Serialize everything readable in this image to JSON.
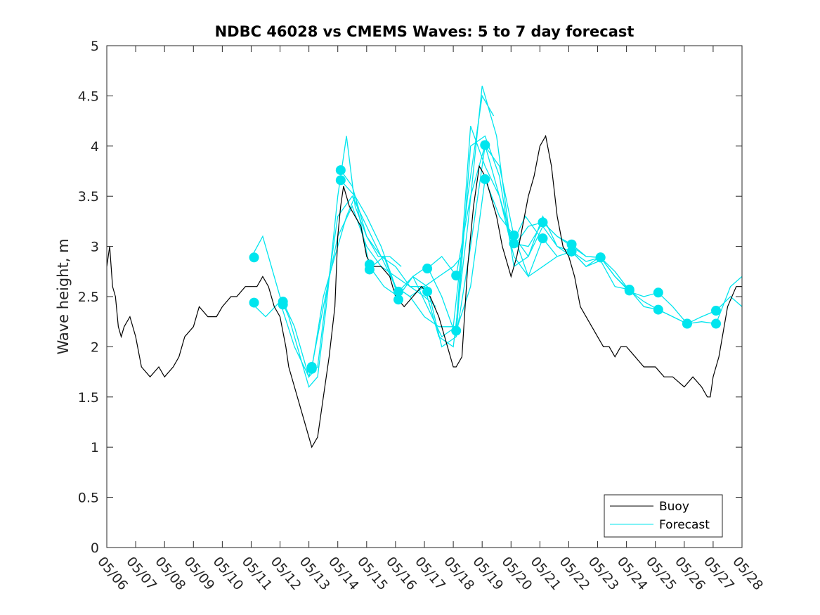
{
  "chart_data": {
    "type": "line",
    "title": "NDBC 46028 vs CMEMS Waves: 5 to 7 day forecast",
    "ylabel": "Wave height, m",
    "xlabel": "",
    "ylim": [
      0,
      5
    ],
    "yticks": [
      0,
      0.5,
      1,
      1.5,
      2,
      2.5,
      3,
      3.5,
      4,
      4.5,
      5
    ],
    "ytick_labels": [
      "0",
      "0.5",
      "1",
      "1.5",
      "2",
      "2.5",
      "3",
      "3.5",
      "4",
      "4.5",
      "5"
    ],
    "xlim": [
      0,
      22
    ],
    "xtick_labels": [
      "05/06",
      "05/07",
      "05/08",
      "05/09",
      "05/10",
      "05/11",
      "05/12",
      "05/13",
      "05/14",
      "05/15",
      "05/16",
      "05/17",
      "05/18",
      "05/19",
      "05/20",
      "05/21",
      "05/22",
      "05/23",
      "05/24",
      "05/25",
      "05/26",
      "05/27",
      "05/28"
    ],
    "grid": false,
    "legend": {
      "position": "bottom-right",
      "entries": [
        "Buoy",
        "Forecast"
      ]
    },
    "colors": {
      "buoy": "#000000",
      "forecast": "#00e5ee"
    },
    "series": [
      {
        "name": "Buoy",
        "color": "#000000",
        "x": [
          0,
          0.1,
          0.2,
          0.3,
          0.4,
          0.5,
          0.6,
          0.8,
          1.0,
          1.2,
          1.5,
          1.8,
          2.0,
          2.3,
          2.5,
          2.7,
          3.0,
          3.2,
          3.5,
          3.8,
          4.0,
          4.3,
          4.5,
          4.8,
          5.0,
          5.2,
          5.4,
          5.6,
          5.8,
          6.0,
          6.2,
          6.3,
          6.5,
          6.7,
          6.9,
          7.0,
          7.1,
          7.3,
          7.5,
          7.7,
          7.9,
          8.0,
          8.1,
          8.2,
          8.4,
          8.6,
          8.8,
          9.0,
          9.2,
          9.5,
          9.8,
          10.0,
          10.3,
          10.6,
          10.9,
          11.2,
          11.5,
          11.7,
          11.9,
          12.0,
          12.1,
          12.3,
          12.5,
          12.7,
          12.9,
          13.1,
          13.3,
          13.5,
          13.7,
          13.9,
          14.0,
          14.2,
          14.4,
          14.6,
          14.8,
          15.0,
          15.2,
          15.4,
          15.6,
          15.8,
          16.0,
          16.2,
          16.4,
          16.6,
          16.8,
          17.0,
          17.2,
          17.4,
          17.6,
          17.8,
          18.0,
          18.3,
          18.6,
          19.0,
          19.3,
          19.6,
          20.0,
          20.3,
          20.6,
          20.8,
          20.9,
          21.0,
          21.2,
          21.5,
          21.8,
          22.0
        ],
        "y": [
          2.8,
          3.0,
          2.6,
          2.5,
          2.2,
          2.1,
          2.2,
          2.3,
          2.1,
          1.8,
          1.7,
          1.8,
          1.7,
          1.8,
          1.9,
          2.1,
          2.2,
          2.4,
          2.3,
          2.3,
          2.4,
          2.5,
          2.5,
          2.6,
          2.6,
          2.6,
          2.7,
          2.6,
          2.4,
          2.3,
          2.0,
          1.8,
          1.6,
          1.4,
          1.2,
          1.1,
          1.0,
          1.1,
          1.5,
          1.9,
          2.4,
          3.1,
          3.4,
          3.6,
          3.4,
          3.3,
          3.2,
          2.9,
          2.8,
          2.8,
          2.7,
          2.5,
          2.4,
          2.5,
          2.6,
          2.5,
          2.3,
          2.1,
          1.9,
          1.8,
          1.8,
          1.9,
          2.8,
          3.4,
          3.8,
          3.7,
          3.5,
          3.3,
          3.0,
          2.8,
          2.7,
          2.9,
          3.2,
          3.5,
          3.7,
          4.0,
          4.1,
          3.8,
          3.3,
          3.0,
          2.9,
          2.7,
          2.4,
          2.3,
          2.2,
          2.1,
          2.0,
          2.0,
          1.9,
          2.0,
          2.0,
          1.9,
          1.8,
          1.8,
          1.7,
          1.7,
          1.6,
          1.7,
          1.6,
          1.5,
          1.5,
          1.7,
          1.9,
          2.4,
          2.6,
          2.6
        ]
      },
      {
        "name": "Forecast",
        "color": "#00e5ee",
        "runs": [
          {
            "x": [
              5.0,
              5.4,
              5.7,
              6.0,
              6.3,
              6.7,
              7.0,
              7.3,
              7.6,
              8.0,
              8.3,
              8.6,
              9.0,
              9.4,
              9.8,
              10.2
            ],
            "y": [
              2.89,
              3.1,
              2.8,
              2.5,
              2.3,
              1.9,
              1.6,
              1.7,
              2.4,
              3.5,
              4.1,
              3.4,
              3.1,
              2.9,
              2.9,
              2.8
            ]
          },
          {
            "x": [
              5.0,
              5.5,
              6.0,
              6.5,
              7.0,
              7.3,
              7.6,
              8.0,
              8.5,
              9.0,
              9.5,
              10.0,
              10.5,
              11.0,
              11.4
            ],
            "y": [
              2.44,
              2.3,
              2.45,
              2.0,
              1.7,
              1.8,
              2.5,
              3.3,
              3.5,
              3.2,
              2.9,
              2.8,
              2.6,
              2.5,
              2.4
            ]
          },
          {
            "x": [
              6.1,
              6.5,
              7.0,
              7.1,
              7.5,
              8.0,
              8.5,
              9.0,
              9.5,
              10.0,
              10.5,
              11.0,
              11.5,
              12.0,
              12.3
            ],
            "y": [
              2.45,
              2.2,
              1.7,
              1.8,
              2.4,
              3.1,
              3.4,
              3.0,
              2.8,
              2.7,
              2.6,
              2.6,
              2.7,
              2.8,
              2.9
            ]
          },
          {
            "x": [
              7.1,
              7.5,
              8.0,
              8.3,
              8.6,
              9.0,
              9.5,
              10.0,
              10.5,
              11.0,
              11.5,
              12.0,
              12.5,
              13.0,
              13.4
            ],
            "y": [
              1.78,
              2.5,
              3.0,
              3.3,
              3.5,
              3.3,
              3.0,
              2.6,
              2.5,
              2.3,
              2.2,
              2.2,
              3.5,
              4.5,
              4.3
            ]
          },
          {
            "x": [
              8.1,
              8.5,
              9.0,
              9.5,
              10.0,
              10.5,
              11.0,
              11.5,
              12.0,
              12.5,
              13.0,
              13.5,
              14.0,
              14.5,
              15.0
            ],
            "y": [
              3.76,
              3.6,
              3.1,
              2.9,
              2.6,
              2.5,
              2.6,
              2.1,
              2.0,
              3.2,
              4.6,
              4.1,
              3.0,
              3.3,
              3.1
            ]
          },
          {
            "x": [
              8.1,
              8.6,
              9.1,
              9.6,
              10.1,
              10.6,
              11.1,
              11.6,
              12.1,
              12.6,
              13.1,
              13.6,
              14.1,
              14.6,
              15.1,
              15.6
            ],
            "y": [
              3.66,
              3.5,
              2.8,
              2.6,
              2.5,
              2.7,
              2.4,
              2.1,
              2.2,
              4.2,
              3.8,
              3.5,
              2.9,
              2.7,
              2.8,
              2.9
            ]
          },
          {
            "x": [
              9.1,
              9.6,
              10.1,
              10.6,
              11.1,
              11.6,
              12.1,
              12.6,
              13.1,
              13.6,
              14.1,
              14.6,
              15.1,
              15.6,
              16.1
            ],
            "y": [
              2.78,
              2.9,
              2.5,
              2.7,
              2.6,
              2.0,
              2.1,
              4.0,
              4.1,
              3.7,
              2.8,
              2.9,
              3.3,
              3.0,
              2.9
            ]
          },
          {
            "x": [
              10.1,
              10.6,
              11.1,
              11.6,
              12.1,
              12.6,
              13.1,
              13.6,
              14.1,
              14.6,
              15.1,
              15.6,
              16.1,
              16.6,
              17.1
            ],
            "y": [
              2.55,
              2.7,
              2.8,
              2.5,
              2.1,
              3.0,
              4.0,
              3.8,
              3.1,
              2.9,
              3.2,
              3.0,
              2.95,
              2.8,
              2.9
            ]
          },
          {
            "x": [
              11.1,
              11.6,
              12.1,
              12.6,
              13.1,
              13.6,
              14.1,
              14.6,
              15.1,
              15.6,
              16.1,
              16.6,
              17.1,
              17.6,
              18.1
            ],
            "y": [
              2.78,
              2.9,
              2.71,
              3.5,
              4.01,
              3.5,
              3.0,
              3.2,
              3.24,
              3.1,
              3.0,
              2.9,
              2.89,
              2.7,
              2.56
            ]
          },
          {
            "x": [
              12.1,
              12.6,
              13.1,
              13.6,
              14.1,
              14.6,
              15.1,
              15.6,
              16.1,
              16.6,
              17.1,
              17.6,
              18.1,
              18.6,
              19.1,
              19.6,
              20.1
            ],
            "y": [
              2.16,
              2.6,
              3.67,
              3.3,
              3.11,
              2.7,
              3.08,
              2.9,
              2.95,
              2.8,
              2.86,
              2.6,
              2.57,
              2.4,
              2.37,
              2.3,
              2.23
            ]
          },
          {
            "x": [
              14.1,
              14.6,
              15.1,
              15.6,
              16.1,
              16.6,
              17.1,
              17.6,
              18.1,
              18.6,
              19.1,
              19.6,
              20.1,
              20.6,
              21.1,
              21.6,
              22.0
            ],
            "y": [
              3.03,
              3.0,
              3.24,
              3.1,
              3.02,
              2.9,
              2.89,
              2.7,
              2.55,
              2.5,
              2.54,
              2.4,
              2.23,
              2.3,
              2.36,
              2.5,
              2.4
            ]
          },
          {
            "x": [
              16.1,
              16.6,
              17.1,
              17.6,
              18.1,
              18.6,
              19.1,
              19.6,
              20.1,
              20.6,
              21.1,
              21.6,
              22.0
            ],
            "y": [
              2.95,
              2.85,
              2.89,
              2.75,
              2.56,
              2.45,
              2.37,
              2.3,
              2.23,
              2.25,
              2.23,
              2.6,
              2.7
            ]
          }
        ],
        "markers": [
          {
            "x": 5.1,
            "y": 2.89
          },
          {
            "x": 5.1,
            "y": 2.44
          },
          {
            "x": 6.1,
            "y": 2.45
          },
          {
            "x": 6.1,
            "y": 2.42
          },
          {
            "x": 7.1,
            "y": 1.8
          },
          {
            "x": 7.1,
            "y": 1.78
          },
          {
            "x": 8.1,
            "y": 3.76
          },
          {
            "x": 8.1,
            "y": 3.66
          },
          {
            "x": 9.1,
            "y": 2.82
          },
          {
            "x": 9.1,
            "y": 2.77
          },
          {
            "x": 10.1,
            "y": 2.55
          },
          {
            "x": 10.1,
            "y": 2.47
          },
          {
            "x": 11.1,
            "y": 2.78
          },
          {
            "x": 11.1,
            "y": 2.55
          },
          {
            "x": 12.1,
            "y": 2.71
          },
          {
            "x": 12.1,
            "y": 2.16
          },
          {
            "x": 13.1,
            "y": 4.01
          },
          {
            "x": 13.1,
            "y": 3.67
          },
          {
            "x": 14.1,
            "y": 3.11
          },
          {
            "x": 14.1,
            "y": 3.03
          },
          {
            "x": 15.1,
            "y": 3.24
          },
          {
            "x": 15.1,
            "y": 3.08
          },
          {
            "x": 16.1,
            "y": 3.02
          },
          {
            "x": 16.1,
            "y": 2.95
          },
          {
            "x": 17.1,
            "y": 2.89
          },
          {
            "x": 17.1,
            "y": 2.89
          },
          {
            "x": 18.1,
            "y": 2.57
          },
          {
            "x": 18.1,
            "y": 2.56
          },
          {
            "x": 19.1,
            "y": 2.54
          },
          {
            "x": 19.1,
            "y": 2.37
          },
          {
            "x": 20.1,
            "y": 2.23
          },
          {
            "x": 20.1,
            "y": 2.23
          },
          {
            "x": 21.1,
            "y": 2.36
          },
          {
            "x": 21.1,
            "y": 2.23
          }
        ]
      }
    ]
  }
}
